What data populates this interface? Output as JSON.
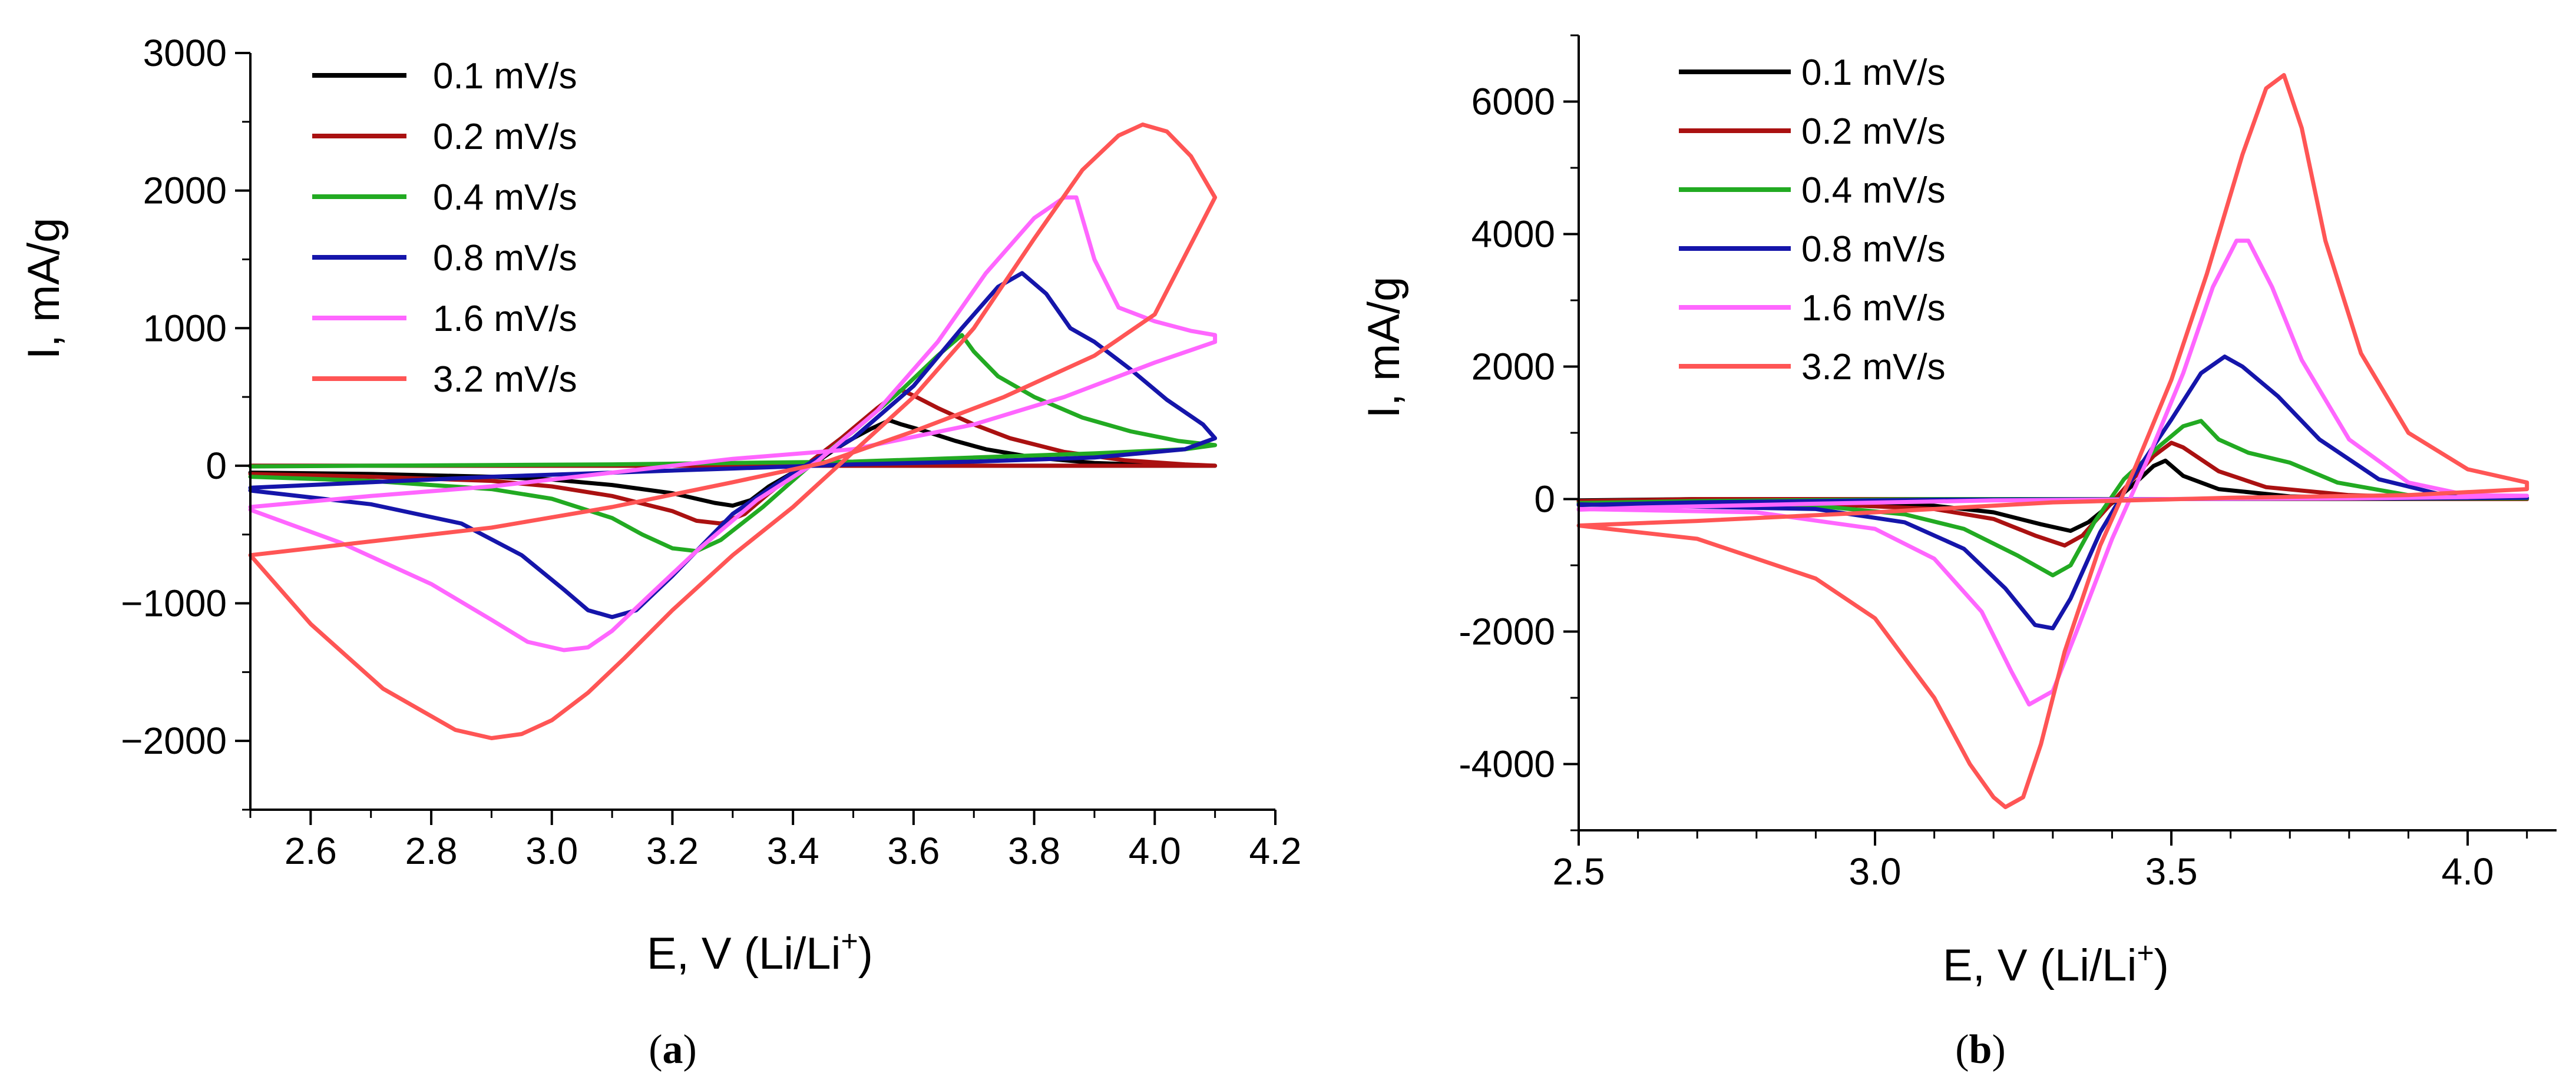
{
  "figure": {
    "panels": [
      "(a)",
      "(b)"
    ],
    "panel_letters": [
      "a",
      "b"
    ]
  },
  "chart_data": [
    {
      "type": "line",
      "panel": "a",
      "title": "",
      "xlabel": "E, V (Li/Li",
      "xlabel_sup": "+",
      "xlabel_close": ")",
      "ylabel": "I, mA/g",
      "xlim": [
        2.5,
        4.2
      ],
      "ylim": [
        -2500,
        3000
      ],
      "xticks": [
        2.6,
        2.8,
        3.0,
        3.2,
        3.4,
        3.6,
        3.8,
        4.0,
        4.2
      ],
      "xtick_labels": [
        "2.6",
        "2.8",
        "3.0",
        "3.2",
        "3.4",
        "3.6",
        "3.8",
        "4.0",
        "4.2"
      ],
      "yticks": [
        3000,
        2000,
        1000,
        0,
        -1000,
        -2000
      ],
      "ytick_labels": [
        "3000",
        "2000",
        "1000",
        "0",
        "−1000",
        "−2000"
      ],
      "legend": "top-left",
      "grid": false,
      "series": [
        {
          "name": "0.1 mV/s",
          "color": "#000000",
          "x": [
            2.5,
            2.7,
            2.9,
            3.0,
            3.1,
            3.2,
            3.27,
            3.3,
            3.33,
            3.36,
            3.4,
            3.44,
            3.47,
            3.5,
            3.53,
            3.56,
            3.58,
            3.62,
            3.67,
            3.72,
            3.8,
            3.9,
            4.0,
            4.1,
            4.0,
            3.8,
            3.6,
            3.45,
            3.3,
            3.1,
            2.9,
            2.7,
            2.5
          ],
          "y": [
            -50,
            -60,
            -80,
            -100,
            -140,
            -200,
            -270,
            -290,
            -250,
            -150,
            -50,
            30,
            120,
            200,
            270,
            330,
            300,
            250,
            180,
            120,
            60,
            20,
            5,
            0,
            0,
            0,
            0,
            0,
            0,
            0,
            0,
            0,
            0
          ]
        },
        {
          "name": "0.2 mV/s",
          "color": "#aa1111",
          "x": [
            2.5,
            2.7,
            2.9,
            3.0,
            3.1,
            3.2,
            3.24,
            3.28,
            3.32,
            3.36,
            3.42,
            3.48,
            3.54,
            3.58,
            3.6,
            3.64,
            3.7,
            3.76,
            3.85,
            3.95,
            4.05,
            4.1,
            4.0,
            3.8,
            3.6,
            3.45,
            3.3,
            3.1,
            2.9,
            2.7,
            2.5
          ],
          "y": [
            -60,
            -80,
            -110,
            -150,
            -220,
            -330,
            -400,
            -420,
            -350,
            -200,
            0,
            200,
            420,
            550,
            510,
            420,
            300,
            200,
            100,
            40,
            10,
            0,
            0,
            0,
            0,
            0,
            0,
            0,
            0,
            0,
            0
          ]
        },
        {
          "name": "0.4 mV/s",
          "color": "#22aa22",
          "x": [
            2.5,
            2.7,
            2.9,
            3.0,
            3.1,
            3.15,
            3.2,
            3.24,
            3.28,
            3.35,
            3.42,
            3.5,
            3.58,
            3.64,
            3.68,
            3.7,
            3.74,
            3.8,
            3.88,
            3.96,
            4.04,
            4.1,
            4.05,
            3.9,
            3.7,
            3.5,
            3.3,
            3.1,
            2.9,
            2.7,
            2.5
          ],
          "y": [
            -80,
            -110,
            -170,
            -240,
            -380,
            -500,
            -600,
            -620,
            -540,
            -300,
            -30,
            250,
            550,
            800,
            950,
            830,
            650,
            500,
            350,
            250,
            180,
            150,
            120,
            90,
            60,
            30,
            20,
            10,
            5,
            0,
            -5
          ]
        },
        {
          "name": "0.8 mV/s",
          "color": "#1515aa",
          "x": [
            2.5,
            2.7,
            2.85,
            2.95,
            3.02,
            3.06,
            3.1,
            3.14,
            3.2,
            3.3,
            3.4,
            3.5,
            3.6,
            3.68,
            3.74,
            3.78,
            3.82,
            3.86,
            3.9,
            3.96,
            4.02,
            4.08,
            4.1,
            4.05,
            3.9,
            3.7,
            3.5,
            3.3,
            3.1,
            2.9,
            2.7,
            2.5
          ],
          "y": [
            -180,
            -280,
            -420,
            -650,
            -900,
            -1050,
            -1100,
            -1050,
            -800,
            -350,
            -50,
            200,
            580,
            1000,
            1300,
            1400,
            1250,
            1000,
            900,
            700,
            480,
            300,
            200,
            120,
            60,
            30,
            10,
            -20,
            -50,
            -80,
            -120,
            -160
          ]
        },
        {
          "name": "1.6 mV/s",
          "color": "#ff66ff",
          "x": [
            2.5,
            2.65,
            2.8,
            2.9,
            2.96,
            3.02,
            3.06,
            3.1,
            3.16,
            3.24,
            3.34,
            3.44,
            3.54,
            3.64,
            3.72,
            3.8,
            3.85,
            3.87,
            3.9,
            3.94,
            4.0,
            4.06,
            4.1,
            4.1,
            4.0,
            3.85,
            3.7,
            3.5,
            3.3,
            3.1,
            2.9,
            2.7,
            2.5
          ],
          "y": [
            -320,
            -560,
            -860,
            -1120,
            -1280,
            -1340,
            -1320,
            -1200,
            -950,
            -620,
            -250,
            30,
            400,
            900,
            1400,
            1800,
            1950,
            1950,
            1500,
            1150,
            1050,
            980,
            950,
            900,
            750,
            500,
            300,
            120,
            50,
            -50,
            -150,
            -220,
            -300
          ]
        },
        {
          "name": "3.2 mV/s",
          "color": "#ff5555",
          "x": [
            2.5,
            2.6,
            2.72,
            2.84,
            2.9,
            2.95,
            3.0,
            3.06,
            3.12,
            3.2,
            3.3,
            3.4,
            3.5,
            3.6,
            3.7,
            3.8,
            3.88,
            3.94,
            3.98,
            4.02,
            4.06,
            4.1,
            4.1,
            4.0,
            3.9,
            3.75,
            3.6,
            3.45,
            3.3,
            3.1,
            2.9,
            2.7,
            2.5
          ],
          "y": [
            -650,
            -1150,
            -1620,
            -1920,
            -1980,
            -1950,
            -1850,
            -1650,
            -1400,
            -1050,
            -650,
            -300,
            100,
            500,
            1000,
            1650,
            2150,
            2400,
            2480,
            2430,
            2250,
            1950,
            1950,
            1100,
            800,
            500,
            250,
            20,
            -120,
            -300,
            -450,
            -550,
            -650
          ]
        }
      ]
    },
    {
      "type": "line",
      "panel": "b",
      "title": "",
      "xlabel": "E, V (Li/Li",
      "xlabel_sup": "+",
      "xlabel_close": ")",
      "ylabel": "I, mA/g",
      "xlim": [
        2.5,
        4.15
      ],
      "ylim": [
        -5000,
        7000
      ],
      "xticks": [
        2.5,
        3.0,
        3.5,
        4.0
      ],
      "xtick_labels": [
        "2.5",
        "3.0",
        "3.5",
        "4.0"
      ],
      "yticks": [
        6000,
        4000,
        2000,
        0,
        -2000,
        -4000
      ],
      "ytick_labels": [
        "6000",
        "4000",
        "2000",
        "0",
        "-2000",
        "-4000"
      ],
      "legend": "top-left",
      "grid": false,
      "series": [
        {
          "name": "0.1 mV/s",
          "color": "#000000",
          "x": [
            2.5,
            2.9,
            3.1,
            3.2,
            3.28,
            3.33,
            3.36,
            3.4,
            3.44,
            3.47,
            3.49,
            3.52,
            3.58,
            3.7,
            3.9,
            4.1,
            3.9,
            3.5,
            3.1,
            2.7,
            2.5
          ],
          "y": [
            -30,
            -50,
            -100,
            -200,
            -380,
            -480,
            -350,
            -60,
            250,
            500,
            580,
            350,
            150,
            40,
            10,
            0,
            0,
            0,
            0,
            0,
            -20
          ]
        },
        {
          "name": "0.2 mV/s",
          "color": "#aa1111",
          "x": [
            2.5,
            2.9,
            3.1,
            3.2,
            3.27,
            3.32,
            3.35,
            3.39,
            3.43,
            3.47,
            3.5,
            3.52,
            3.58,
            3.66,
            3.8,
            3.95,
            4.1,
            3.9,
            3.5,
            3.1,
            2.7,
            2.5
          ],
          "y": [
            -40,
            -70,
            -150,
            -300,
            -550,
            -700,
            -550,
            -150,
            250,
            650,
            850,
            780,
            420,
            180,
            60,
            20,
            0,
            0,
            0,
            0,
            0,
            -30
          ]
        },
        {
          "name": "0.4 mV/s",
          "color": "#22aa22",
          "x": [
            2.5,
            2.9,
            3.05,
            3.15,
            3.24,
            3.3,
            3.33,
            3.37,
            3.42,
            3.48,
            3.52,
            3.55,
            3.58,
            3.63,
            3.7,
            3.78,
            3.9,
            4.1,
            3.9,
            3.5,
            3.1,
            2.7,
            2.5
          ],
          "y": [
            -60,
            -100,
            -230,
            -450,
            -850,
            -1150,
            -1000,
            -350,
            300,
            800,
            1100,
            1180,
            900,
            700,
            550,
            250,
            60,
            10,
            5,
            0,
            0,
            -30,
            -60
          ]
        },
        {
          "name": "0.8 mV/s",
          "color": "#1515aa",
          "x": [
            2.5,
            2.9,
            3.05,
            3.15,
            3.22,
            3.27,
            3.3,
            3.33,
            3.38,
            3.44,
            3.5,
            3.55,
            3.59,
            3.62,
            3.68,
            3.75,
            3.85,
            3.95,
            4.1,
            3.9,
            3.5,
            3.1,
            2.7,
            2.5
          ],
          "y": [
            -80,
            -150,
            -350,
            -750,
            -1350,
            -1900,
            -1950,
            -1500,
            -500,
            400,
            1200,
            1900,
            2150,
            2000,
            1550,
            900,
            300,
            80,
            20,
            10,
            0,
            -10,
            -50,
            -90
          ]
        },
        {
          "name": "1.6 mV/s",
          "color": "#ff66ff",
          "x": [
            2.5,
            2.8,
            3.0,
            3.1,
            3.18,
            3.23,
            3.26,
            3.3,
            3.34,
            3.4,
            3.46,
            3.52,
            3.57,
            3.61,
            3.63,
            3.67,
            3.72,
            3.8,
            3.9,
            4.0,
            4.1,
            4.0,
            3.8,
            3.5,
            3.2,
            2.9,
            2.6,
            2.5
          ],
          "y": [
            -150,
            -200,
            -450,
            -900,
            -1700,
            -2600,
            -3100,
            -2900,
            -2000,
            -600,
            600,
            1900,
            3200,
            3900,
            3900,
            3200,
            2100,
            900,
            250,
            60,
            50,
            30,
            10,
            0,
            -20,
            -70,
            -130,
            -160
          ]
        },
        {
          "name": "3.2 mV/s",
          "color": "#ff5555",
          "x": [
            2.5,
            2.7,
            2.9,
            3.0,
            3.1,
            3.16,
            3.2,
            3.22,
            3.25,
            3.28,
            3.32,
            3.38,
            3.44,
            3.5,
            3.56,
            3.62,
            3.66,
            3.69,
            3.72,
            3.76,
            3.82,
            3.9,
            4.0,
            4.1,
            4.1,
            3.9,
            3.6,
            3.3,
            3.0,
            2.7,
            2.5
          ],
          "y": [
            -400,
            -600,
            -1200,
            -1800,
            -3000,
            -4000,
            -4500,
            -4650,
            -4500,
            -3700,
            -2300,
            -700,
            500,
            1800,
            3400,
            5200,
            6200,
            6400,
            5600,
            3900,
            2200,
            1000,
            450,
            250,
            150,
            60,
            20,
            -50,
            -200,
            -330,
            -400
          ]
        }
      ]
    }
  ]
}
